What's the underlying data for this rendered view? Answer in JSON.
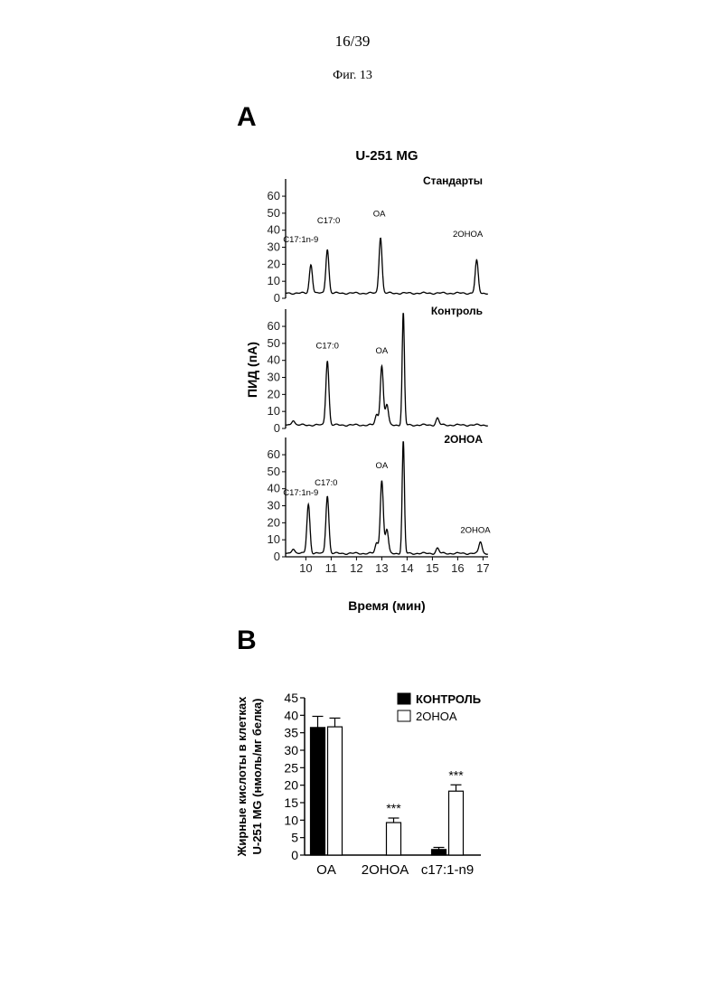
{
  "page": {
    "number": "16/39",
    "figure": "Фиг. 13"
  },
  "panel_a": {
    "letter": "A"
  },
  "panel_b": {
    "letter": "B"
  },
  "colors": {
    "control": "#000000",
    "treatment": "#ffffff",
    "trace": "#000000"
  },
  "chart_data": [
    {
      "type": "line",
      "title": "U-251 MG",
      "xlabel": "Время (мин)",
      "ylabel": "ПИД (пА)",
      "xlim": [
        9.2,
        17.2
      ],
      "ylim": [
        0,
        68
      ],
      "x_ticks": [
        10,
        11,
        12,
        13,
        14,
        15,
        16,
        17
      ],
      "y_ticks": [
        0,
        10,
        20,
        30,
        40,
        50,
        60
      ],
      "panels": [
        {
          "name": "Стандарты",
          "baseline": 3,
          "peaks": [
            {
              "x": 10.2,
              "height": 17
            },
            {
              "x": 10.85,
              "height": 26
            },
            {
              "x": 12.95,
              "height": 33
            },
            {
              "x": 16.75,
              "height": 19
            }
          ],
          "annotations": [
            {
              "label": "C17:1n-9",
              "x": 9.8,
              "y": 33
            },
            {
              "label": "C17:0",
              "x": 10.9,
              "y": 44
            },
            {
              "label": "OA",
              "x": 12.9,
              "y": 48
            },
            {
              "label": "2OHOA",
              "x": 16.4,
              "y": 36
            }
          ]
        },
        {
          "name": "Контроль",
          "baseline": 2,
          "peaks": [
            {
              "x": 9.5,
              "height": 3
            },
            {
              "x": 10.85,
              "height": 38
            },
            {
              "x": 12.8,
              "height": 6
            },
            {
              "x": 13.0,
              "height": 35
            },
            {
              "x": 13.2,
              "height": 12
            },
            {
              "x": 13.85,
              "height": 66
            },
            {
              "x": 15.2,
              "height": 4
            }
          ],
          "annotations": [
            {
              "label": "C17:0",
              "x": 10.85,
              "y": 47
            },
            {
              "label": "OA",
              "x": 13.0,
              "y": 44
            }
          ]
        },
        {
          "name": "2OHOA",
          "baseline": 2,
          "peaks": [
            {
              "x": 9.5,
              "height": 3
            },
            {
              "x": 10.1,
              "height": 29
            },
            {
              "x": 10.85,
              "height": 34
            },
            {
              "x": 12.8,
              "height": 6
            },
            {
              "x": 13.0,
              "height": 43
            },
            {
              "x": 13.2,
              "height": 14
            },
            {
              "x": 13.85,
              "height": 66
            },
            {
              "x": 15.2,
              "height": 3
            },
            {
              "x": 16.9,
              "height": 7
            }
          ],
          "annotations": [
            {
              "label": "C17:1n-9",
              "x": 9.8,
              "y": 36
            },
            {
              "label": "C17:0",
              "x": 10.8,
              "y": 42
            },
            {
              "label": "OA",
              "x": 13.0,
              "y": 52
            },
            {
              "label": "2OHOA",
              "x": 16.7,
              "y": 14
            }
          ]
        }
      ]
    },
    {
      "type": "bar",
      "categories": [
        "OA",
        "2OHOA",
        "c17:1-n9"
      ],
      "ylabel_line1": "Жирные кислоты в клетках",
      "ylabel_line2": "U-251 MG (нмоль/мг белка)",
      "ylim": [
        0,
        45
      ],
      "y_ticks": [
        0,
        5,
        10,
        15,
        20,
        25,
        30,
        35,
        40,
        45
      ],
      "legend_position": "top-right",
      "series": [
        {
          "name": "КОНТРОЛЬ",
          "values": [
            36.5,
            0,
            1.6
          ],
          "errors": [
            3.2,
            0,
            0.6
          ],
          "fill": "#000000"
        },
        {
          "name": "2OHOA",
          "values": [
            36.7,
            9.3,
            18.3
          ],
          "errors": [
            2.5,
            1.3,
            1.8
          ],
          "fill": "#ffffff"
        }
      ],
      "significance": [
        {
          "category": 1,
          "series": 1,
          "label": "***"
        },
        {
          "category": 2,
          "series": 1,
          "label": "***"
        }
      ]
    }
  ]
}
